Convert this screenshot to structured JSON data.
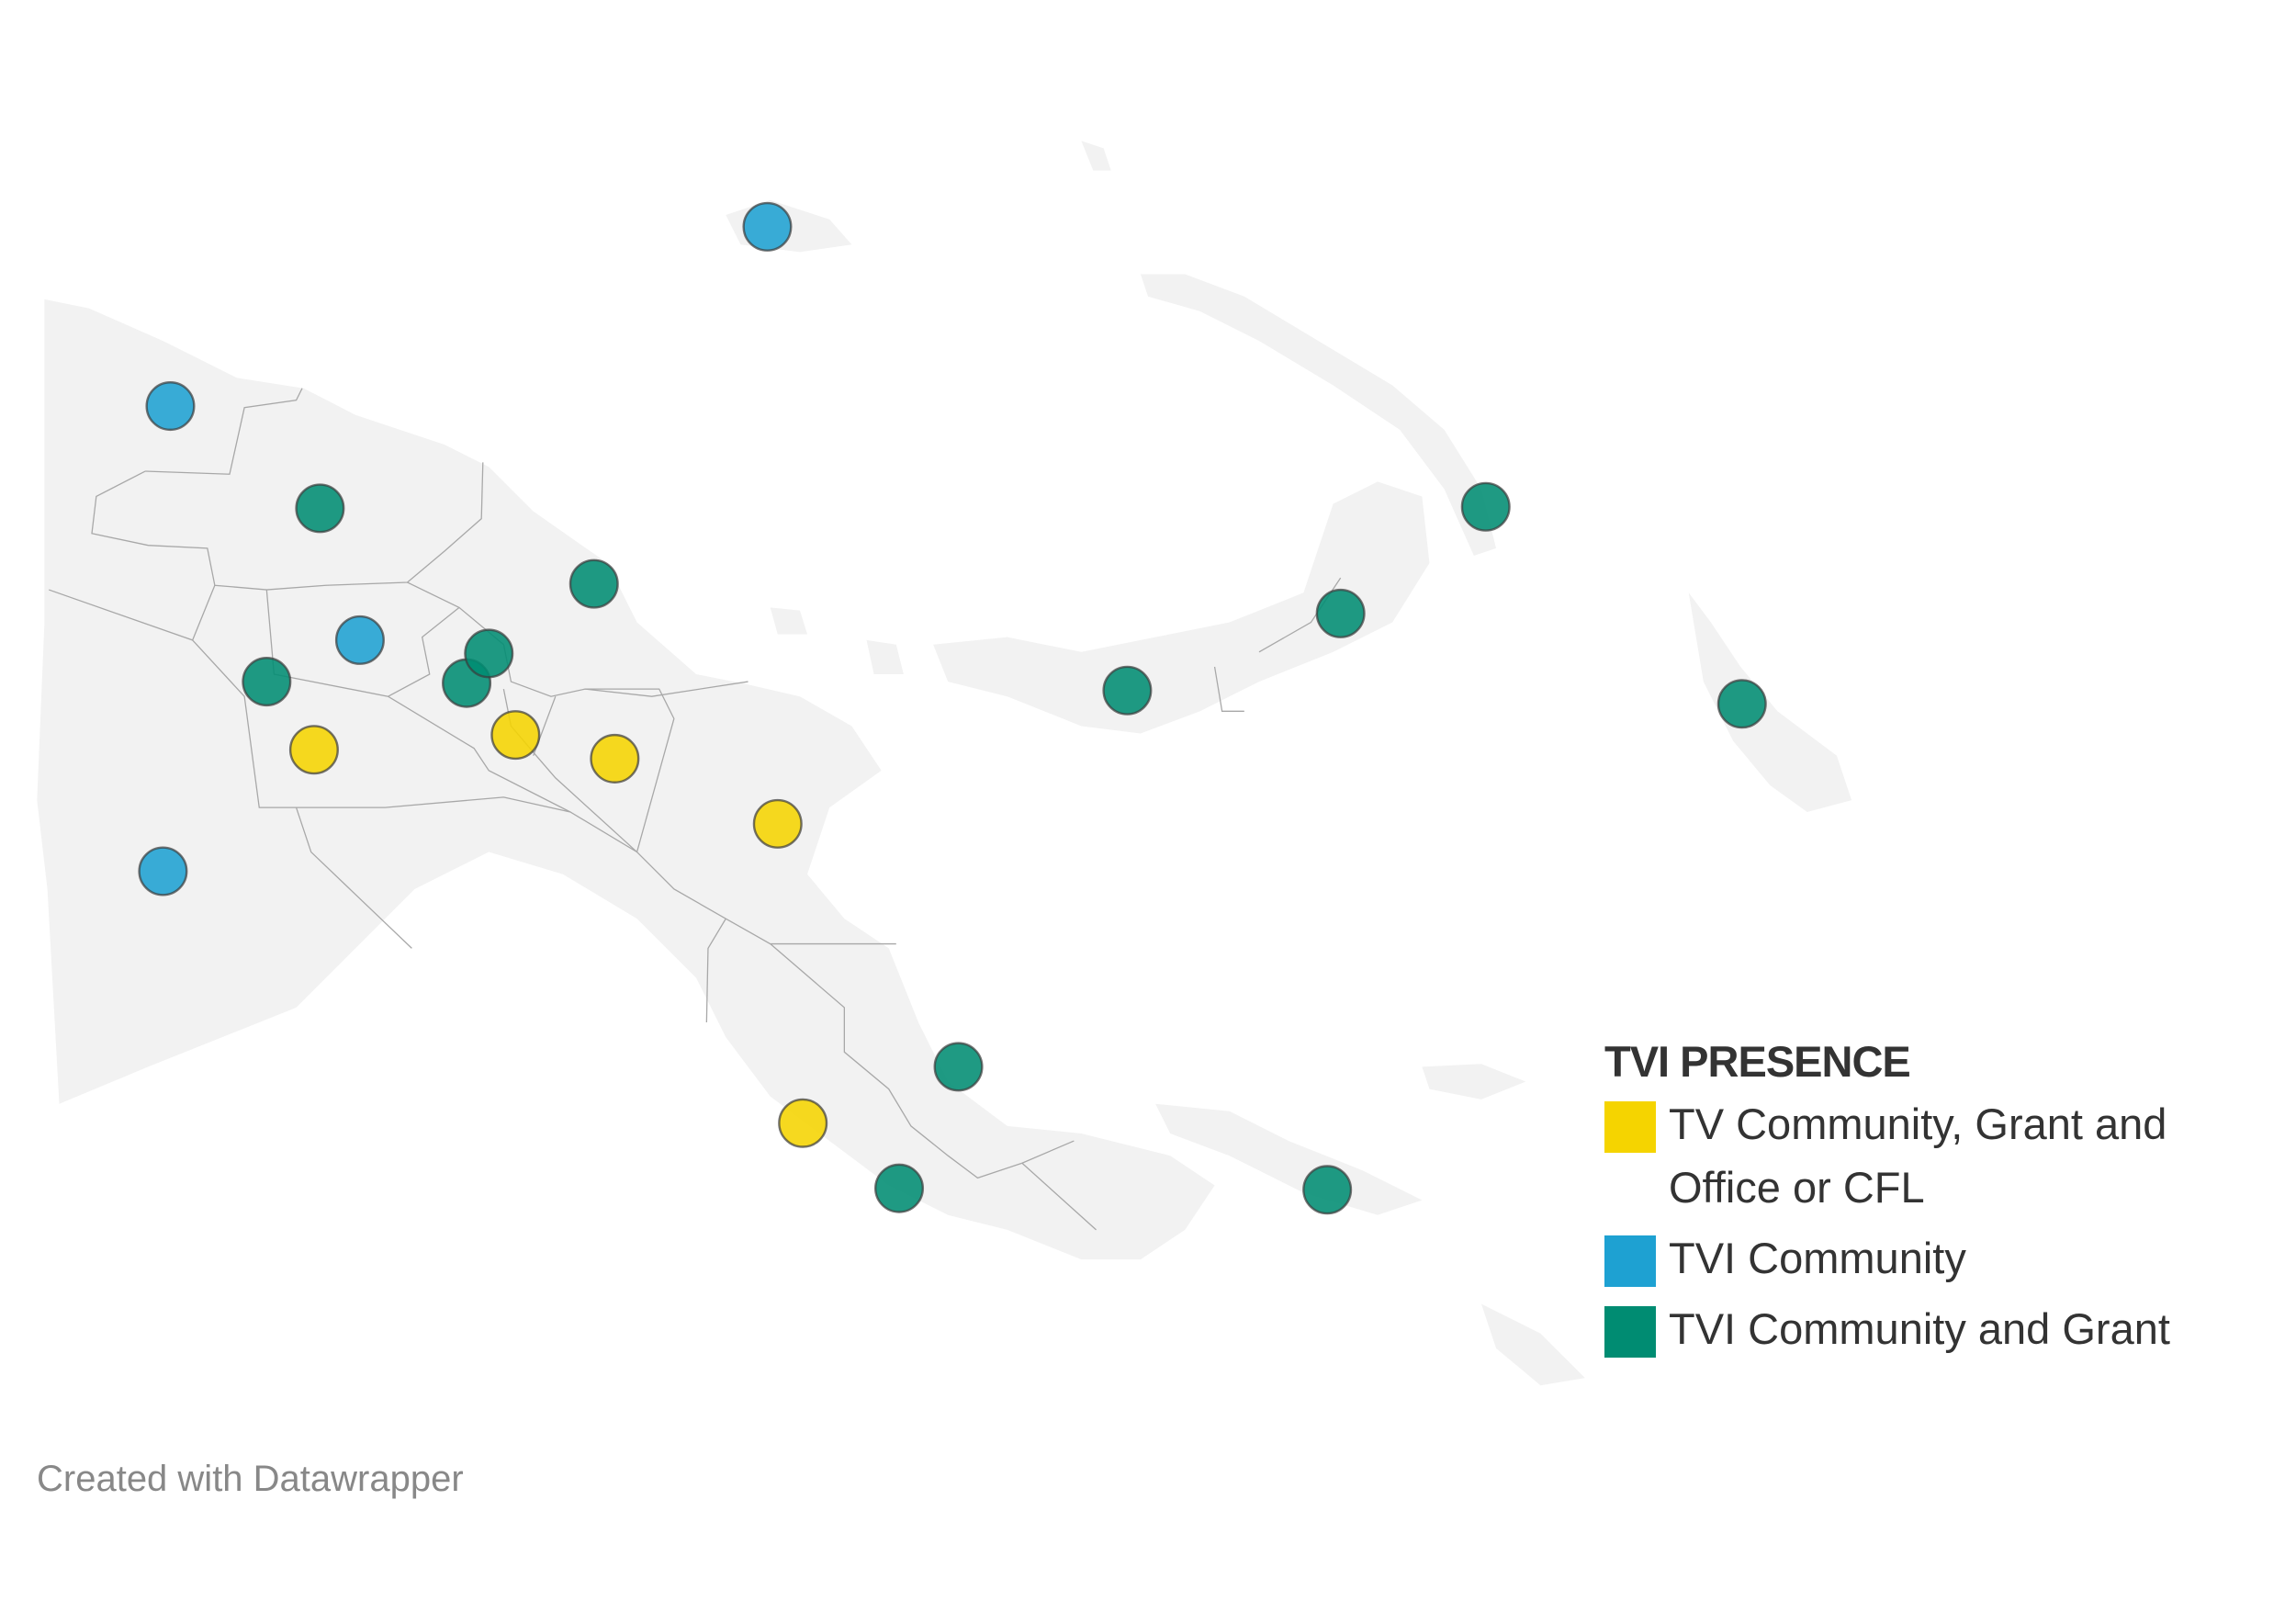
{
  "legend": {
    "title": "TVI PRESENCE",
    "items": [
      {
        "label": "TV Community, Grant and Office or CFL",
        "color": "#f5d400"
      },
      {
        "label": "TVI Community",
        "color": "#1ea1d2"
      },
      {
        "label": "TVI Community and Grant",
        "color": "#008c72"
      }
    ]
  },
  "footer": "Created with Datawrapper"
}
